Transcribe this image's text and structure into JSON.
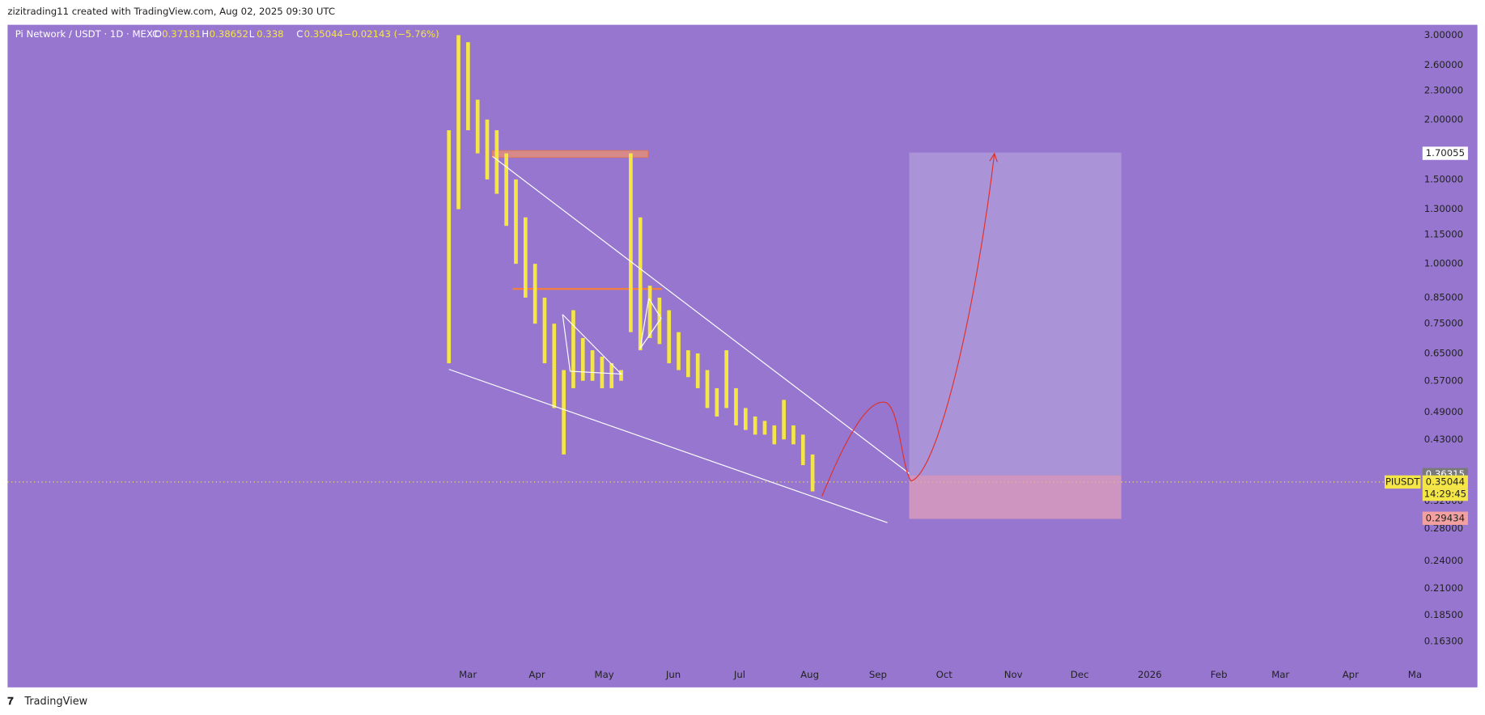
{
  "header": {
    "credit": "zizitrading11 created with TradingView.com, Aug 02, 2025 09:30 UTC"
  },
  "legend": {
    "symbol": "Pi Network / USDT · 1D · MEXC",
    "ohlc": [
      {
        "label": "O",
        "value": 0.37181
      },
      {
        "label": "H",
        "value": 0.38652
      },
      {
        "label": "L",
        "value": 0.338
      },
      {
        "label": "C",
        "value": 0.35044
      }
    ],
    "change": "−0.02143 (−5.76%)"
  },
  "chart_data": {
    "type": "candlestick",
    "color": "#f5e648",
    "log_scale": true,
    "ylim": [
      0.147,
      3.125
    ],
    "yticks": [
      {
        "value": 3,
        "label": "3.00000"
      },
      {
        "value": 2.6,
        "label": "2.60000"
      },
      {
        "value": 2.3,
        "label": "2.30000"
      },
      {
        "value": 2,
        "label": "2.00000"
      },
      {
        "value": 1.5,
        "label": "1.50000"
      },
      {
        "value": 1.3,
        "label": "1.30000"
      },
      {
        "value": 1.15,
        "label": "1.15000"
      },
      {
        "value": 1,
        "label": "1.00000"
      },
      {
        "value": 0.85,
        "label": "0.85000"
      },
      {
        "value": 0.75,
        "label": "0.75000"
      },
      {
        "value": 0.65,
        "label": "0.65000"
      },
      {
        "value": 0.57,
        "label": "0.57000"
      },
      {
        "value": 0.49,
        "label": "0.49000"
      },
      {
        "value": 0.43,
        "label": "0.43000"
      },
      {
        "value": 0.32,
        "label": "0.32000"
      },
      {
        "value": 0.28,
        "label": "0.28000"
      },
      {
        "value": 0.24,
        "label": "0.24000"
      },
      {
        "value": 0.21,
        "label": "0.21000"
      },
      {
        "value": 0.185,
        "label": "0.18500"
      },
      {
        "value": 0.163,
        "label": "0.16300"
      }
    ],
    "x_labels": [
      "Mar",
      "Apr",
      "May",
      "Jun",
      "Jul",
      "Aug",
      "Sep",
      "Oct",
      "Nov",
      "Dec",
      "2026",
      "Feb",
      "Mar",
      "Apr",
      "Ma"
    ],
    "highs": [
      1.9,
      3.0,
      2.9,
      2.2,
      2.0,
      1.9,
      1.7,
      1.5,
      1.25,
      1.0,
      0.85,
      0.75,
      0.6,
      0.8,
      0.7,
      0.66,
      0.64,
      0.62,
      0.6,
      1.7,
      1.25,
      0.9,
      0.85,
      0.8,
      0.72,
      0.66,
      0.65,
      0.6,
      0.55,
      0.66,
      0.55,
      0.5,
      0.48,
      0.47,
      0.46,
      0.52,
      0.46,
      0.44,
      0.4
    ],
    "lows": [
      0.62,
      1.3,
      1.9,
      1.7,
      1.5,
      1.4,
      1.2,
      1.0,
      0.85,
      0.75,
      0.62,
      0.5,
      0.4,
      0.55,
      0.57,
      0.57,
      0.55,
      0.55,
      0.57,
      0.72,
      0.66,
      0.7,
      0.68,
      0.62,
      0.6,
      0.58,
      0.55,
      0.5,
      0.48,
      0.5,
      0.46,
      0.45,
      0.44,
      0.44,
      0.42,
      0.43,
      0.42,
      0.38,
      0.335
    ],
    "price_tags": {
      "target": 1.70055,
      "entry": 0.36315,
      "last": 0.35044,
      "stop": 0.29434
    },
    "symbol_tag": "PIUSDT",
    "countdown": "14:29:45"
  },
  "footer": {
    "brand": "TradingView"
  }
}
